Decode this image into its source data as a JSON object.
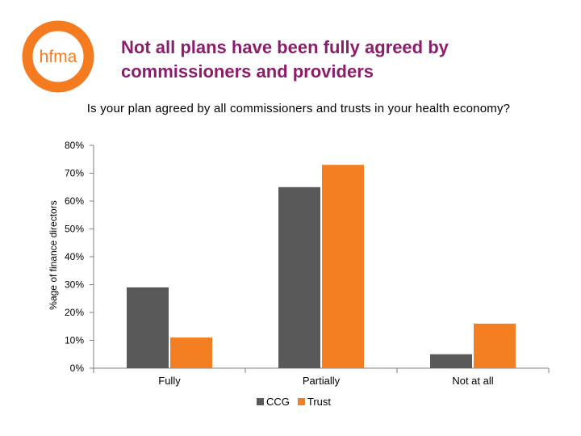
{
  "slide": {
    "logo_text": "hfma",
    "title": "Not all plans have been fully agreed by commissioners and providers"
  },
  "colors": {
    "logo_ring": "#f47b20",
    "title": "#8b1d6b",
    "ccg": "#595959",
    "trust": "#f47f22",
    "axis": "#7f7f7f"
  },
  "chart_data": {
    "type": "bar",
    "title": "Is your plan agreed by all commissioners and trusts in your health economy?",
    "xlabel": "",
    "ylabel": "%age of finance directors",
    "categories": [
      "Fully",
      "Partially",
      "Not at all"
    ],
    "series": [
      {
        "name": "CCG",
        "values": [
          29,
          65,
          5
        ]
      },
      {
        "name": "Trust",
        "values": [
          11,
          73,
          16
        ]
      }
    ],
    "ylim": [
      0,
      80
    ],
    "yticks": [
      "0%",
      "10%",
      "20%",
      "30%",
      "40%",
      "50%",
      "60%",
      "70%",
      "80%"
    ],
    "grid": false,
    "legend_position": "bottom"
  }
}
